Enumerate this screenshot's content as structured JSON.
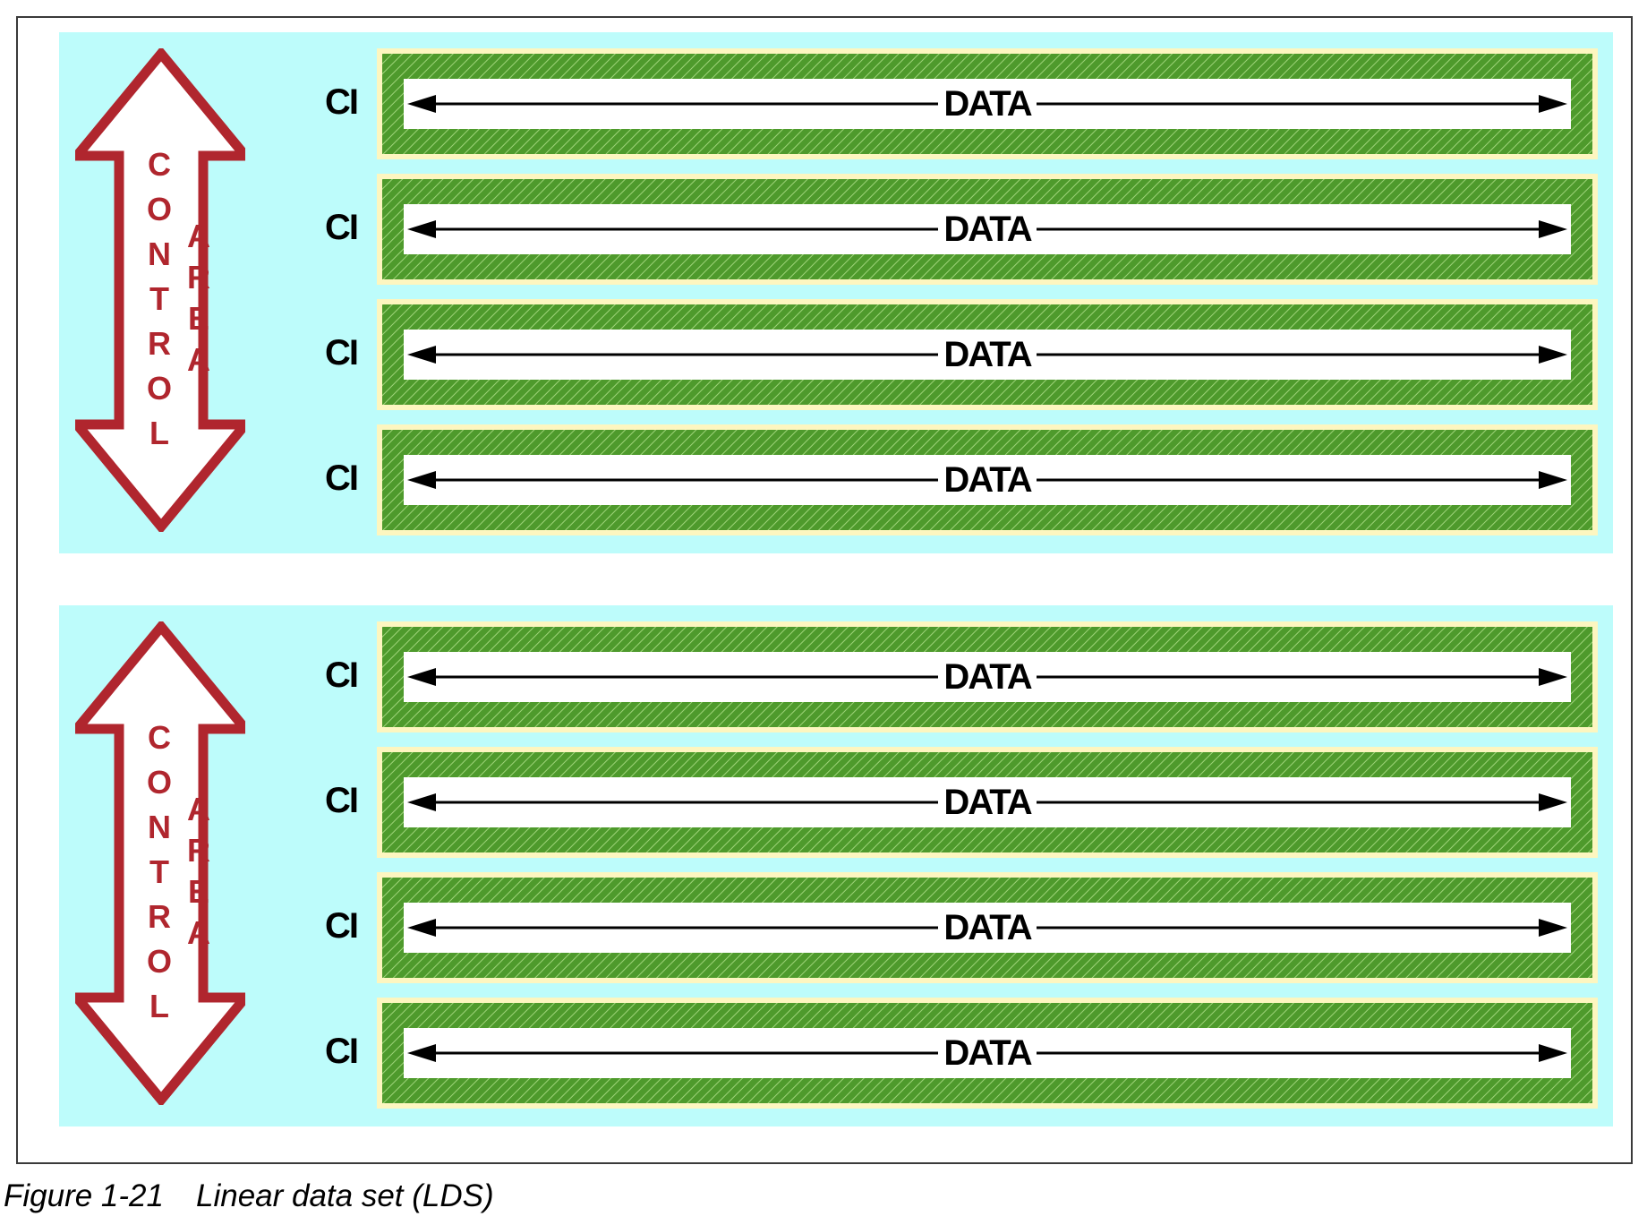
{
  "figure": {
    "caption_number": "Figure 1-21",
    "caption_text": "Linear data set (LDS)"
  },
  "colors": {
    "panel_background": "#bdfcfb",
    "arrow_outline": "#b0262e",
    "hatch_green": "#4e9a2c",
    "interval_border": "#fdf6c0"
  },
  "control_areas": [
    {
      "label_col1": [
        "C",
        "O",
        "N",
        "T",
        "R",
        "O",
        "L"
      ],
      "label_col2": [
        "A",
        "R",
        "E",
        "A"
      ],
      "control_intervals": [
        {
          "ci_label": "CI",
          "data_label": "DATA"
        },
        {
          "ci_label": "CI",
          "data_label": "DATA"
        },
        {
          "ci_label": "CI",
          "data_label": "DATA"
        },
        {
          "ci_label": "CI",
          "data_label": "DATA"
        }
      ]
    },
    {
      "label_col1": [
        "C",
        "O",
        "N",
        "T",
        "R",
        "O",
        "L"
      ],
      "label_col2": [
        "A",
        "R",
        "E",
        "A"
      ],
      "control_intervals": [
        {
          "ci_label": "CI",
          "data_label": "DATA"
        },
        {
          "ci_label": "CI",
          "data_label": "DATA"
        },
        {
          "ci_label": "CI",
          "data_label": "DATA"
        },
        {
          "ci_label": "CI",
          "data_label": "DATA"
        }
      ]
    }
  ]
}
